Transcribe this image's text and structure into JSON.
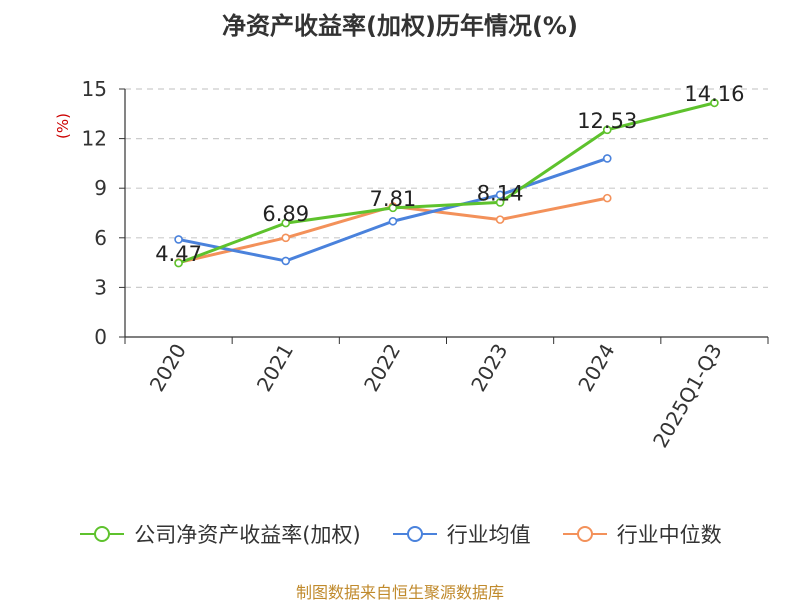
{
  "title": "净资产收益率(加权)历年情况(%)",
  "source": "制图数据来自恒生聚源数据库",
  "colors": {
    "company": "#5ec22d",
    "industry_avg": "#4a82dc",
    "industry_median": "#f3915a",
    "axis": "#333333",
    "grid": "#cccccc",
    "unit": "#cc0000"
  },
  "chart_data": {
    "type": "line",
    "title": "净资产收益率(加权)历年情况(%)",
    "ylabel": "(%)",
    "xlabel": "",
    "categories": [
      "2020",
      "2021",
      "2022",
      "2023",
      "2024",
      "2025Q1-Q3"
    ],
    "ylim": [
      0,
      15
    ],
    "yticks": [
      0,
      3,
      6,
      9,
      12,
      15
    ],
    "grid": true,
    "legend_position": "bottom",
    "series": [
      {
        "name": "公司净资产收益率(加权)",
        "color": "#5ec22d",
        "values": [
          4.47,
          6.89,
          7.81,
          8.14,
          12.53,
          14.16
        ],
        "labels": [
          "4.47",
          "6.89",
          "7.81",
          "8.14",
          "12.53",
          "14.16"
        ]
      },
      {
        "name": "行业均值",
        "color": "#4a82dc",
        "values": [
          5.9,
          4.6,
          7.0,
          8.6,
          10.8,
          null
        ]
      },
      {
        "name": "行业中位数",
        "color": "#f3915a",
        "values": [
          4.5,
          6.0,
          7.9,
          7.1,
          8.4,
          null
        ]
      }
    ]
  }
}
